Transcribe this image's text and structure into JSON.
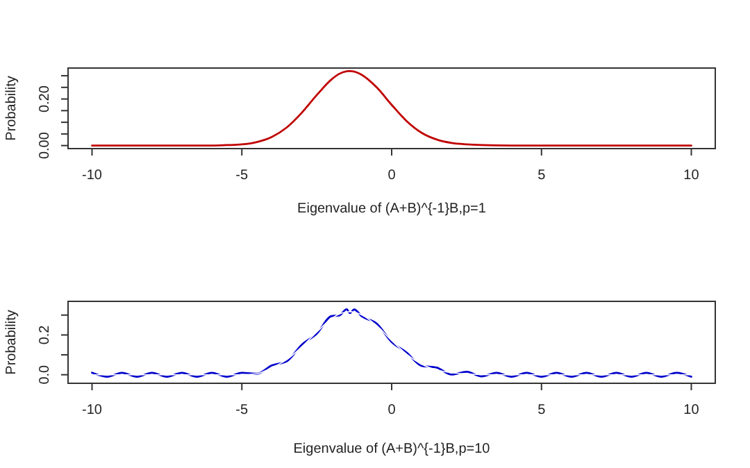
{
  "chart_data": [
    {
      "type": "line",
      "xlabel": "Eigenvalue of (A+B)^{-1}B,p=1",
      "ylabel": "Probability",
      "xlim": [
        -10.8,
        10.8
      ],
      "ylim": [
        -0.013,
        0.333
      ],
      "xticks": [
        -10,
        -5,
        0,
        5,
        10
      ],
      "yticks": [
        {
          "value": 0,
          "label": "0.00"
        },
        {
          "value": 0.05,
          "label": null
        },
        {
          "value": 0.1,
          "label": null
        },
        {
          "value": 0.15,
          "label": null
        },
        {
          "value": 0.2,
          "label": "0.20"
        },
        {
          "value": 0.25,
          "label": null
        },
        {
          "value": 0.3,
          "label": null
        }
      ],
      "line_style": "solid",
      "marker": "none",
      "x": [
        -10,
        -9,
        -8,
        -7,
        -6,
        -5.5,
        -5,
        -4.5,
        -4,
        -3.5,
        -3,
        -2.5,
        -2,
        -1.75,
        -1.5,
        -1.4,
        -1.25,
        -1,
        -0.5,
        0,
        0.5,
        1,
        1.5,
        2,
        2.5,
        3,
        4,
        5,
        6,
        7,
        8,
        9,
        10
      ],
      "series": [
        {
          "color": "#c00000",
          "values": [
            0,
            0,
            0,
            0,
            0,
            0.002,
            0.005,
            0.015,
            0.037,
            0.078,
            0.141,
            0.217,
            0.285,
            0.308,
            0.319,
            0.32,
            0.318,
            0.304,
            0.25,
            0.175,
            0.105,
            0.055,
            0.026,
            0.011,
            0.005,
            0.002,
            0,
            0,
            0,
            0,
            0,
            0,
            0
          ]
        }
      ]
    },
    {
      "type": "line",
      "xlabel": "Eigenvalue of (A+B)^{-1}B,p=10",
      "ylabel": "Probability",
      "xlim": [
        -10.8,
        10.8
      ],
      "ylim": [
        -0.043,
        0.369
      ],
      "xticks": [
        -10,
        -5,
        0,
        5,
        10
      ],
      "yticks": [
        {
          "value": 0,
          "label": "0.0"
        },
        {
          "value": 0.1,
          "label": null
        },
        {
          "value": 0.2,
          "label": "0.2"
        },
        {
          "value": 0.3,
          "label": null
        }
      ],
      "line_style": "solid",
      "marker": "none",
      "x": [
        -10,
        -9.5,
        -9,
        -8.5,
        -8,
        -7.5,
        -7,
        -6.5,
        -6,
        -5.5,
        -5,
        -4.5,
        -4,
        -3.5,
        -3,
        -2.5,
        -2,
        -1.75,
        -1.5,
        -1.4,
        -1.25,
        -1,
        -0.5,
        0,
        0.5,
        1,
        1.5,
        2,
        2.5,
        3,
        3.5,
        4,
        4.5,
        5,
        5.5,
        6,
        6.5,
        7,
        7.5,
        8,
        8.5,
        9,
        9.5,
        10
      ],
      "series": [
        {
          "color": "#0000cc",
          "values": [
            0.01,
            -0.01,
            0.01,
            -0.01,
            0.01,
            -0.01,
            0.01,
            -0.01,
            0.01,
            -0.01,
            0.01,
            0.005,
            0.047,
            0.068,
            0.151,
            0.207,
            0.295,
            0.298,
            0.329,
            0.31,
            0.328,
            0.294,
            0.257,
            0.165,
            0.111,
            0.045,
            0.036,
            0.001,
            0.015,
            -0.008,
            0.01,
            -0.01,
            0.01,
            -0.01,
            0.01,
            -0.01,
            0.01,
            -0.01,
            0.01,
            -0.01,
            0.01,
            -0.01,
            0.01,
            -0.01
          ]
        },
        {
          "color": "#ffffff",
          "values": [
            0,
            0,
            0,
            0,
            0,
            0,
            0,
            0,
            0,
            0,
            0,
            0.005,
            0.035,
            0.076,
            0.14,
            0.215,
            0.283,
            0.305,
            0.316,
            0.317,
            0.315,
            0.301,
            0.247,
            0.172,
            0.103,
            0.053,
            0.024,
            0.01,
            0.004,
            0.001,
            0,
            0,
            0,
            0,
            0,
            0,
            0,
            0,
            0,
            0,
            0,
            0,
            0,
            0
          ]
        }
      ]
    }
  ]
}
